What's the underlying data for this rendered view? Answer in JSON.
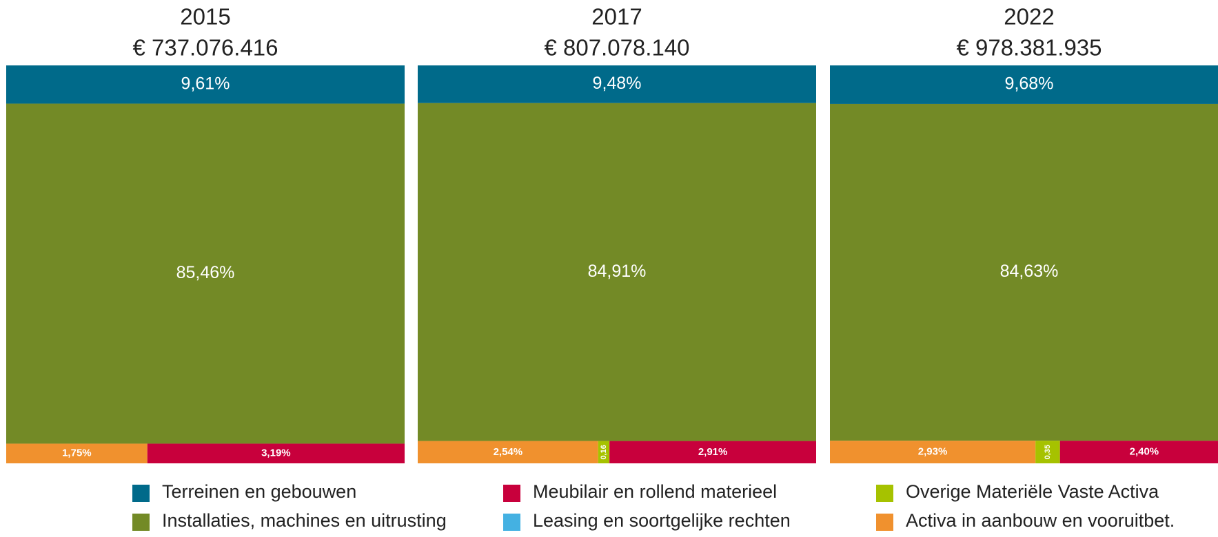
{
  "legend": {
    "items": [
      {
        "name": "Terreinen en gebouwen",
        "color": "#006a8a"
      },
      {
        "name": "Installaties, machines en uitrusting",
        "color": "#738a26"
      },
      {
        "name": "Meubilair en rollend materieel",
        "color": "#c8003c"
      },
      {
        "name": "Leasing en soortgelijke rechten",
        "color": "#44b1e2"
      },
      {
        "name": "Overige Materiële Vaste Activa",
        "color": "#a6c200"
      },
      {
        "name": "Activa in aanbouw en vooruitbet.",
        "color": "#f0912e"
      }
    ]
  },
  "chart_data": [
    {
      "type": "treemap",
      "title": "2015",
      "subtitle": "€ 737.076.416",
      "values": [
        9.61,
        85.46,
        3.19,
        null,
        null,
        1.75
      ],
      "value_labels": [
        "9,61%",
        "85,46%",
        "3,19%",
        null,
        null,
        "1,75%"
      ]
    },
    {
      "type": "treemap",
      "title": "2017",
      "subtitle": "€ 807.078.140",
      "values": [
        9.48,
        84.91,
        2.91,
        null,
        0.16,
        2.54
      ],
      "value_labels": [
        "9,48%",
        "84,91%",
        "2,91%",
        null,
        "0,16",
        "2,54%"
      ]
    },
    {
      "type": "treemap",
      "title": "2022",
      "subtitle": "€ 978.381.935",
      "values": [
        9.68,
        84.63,
        2.4,
        null,
        0.35,
        2.93
      ],
      "value_labels": [
        "9,68%",
        "84,63%",
        "2,40%",
        null,
        "0,35",
        "2,93%"
      ]
    }
  ]
}
